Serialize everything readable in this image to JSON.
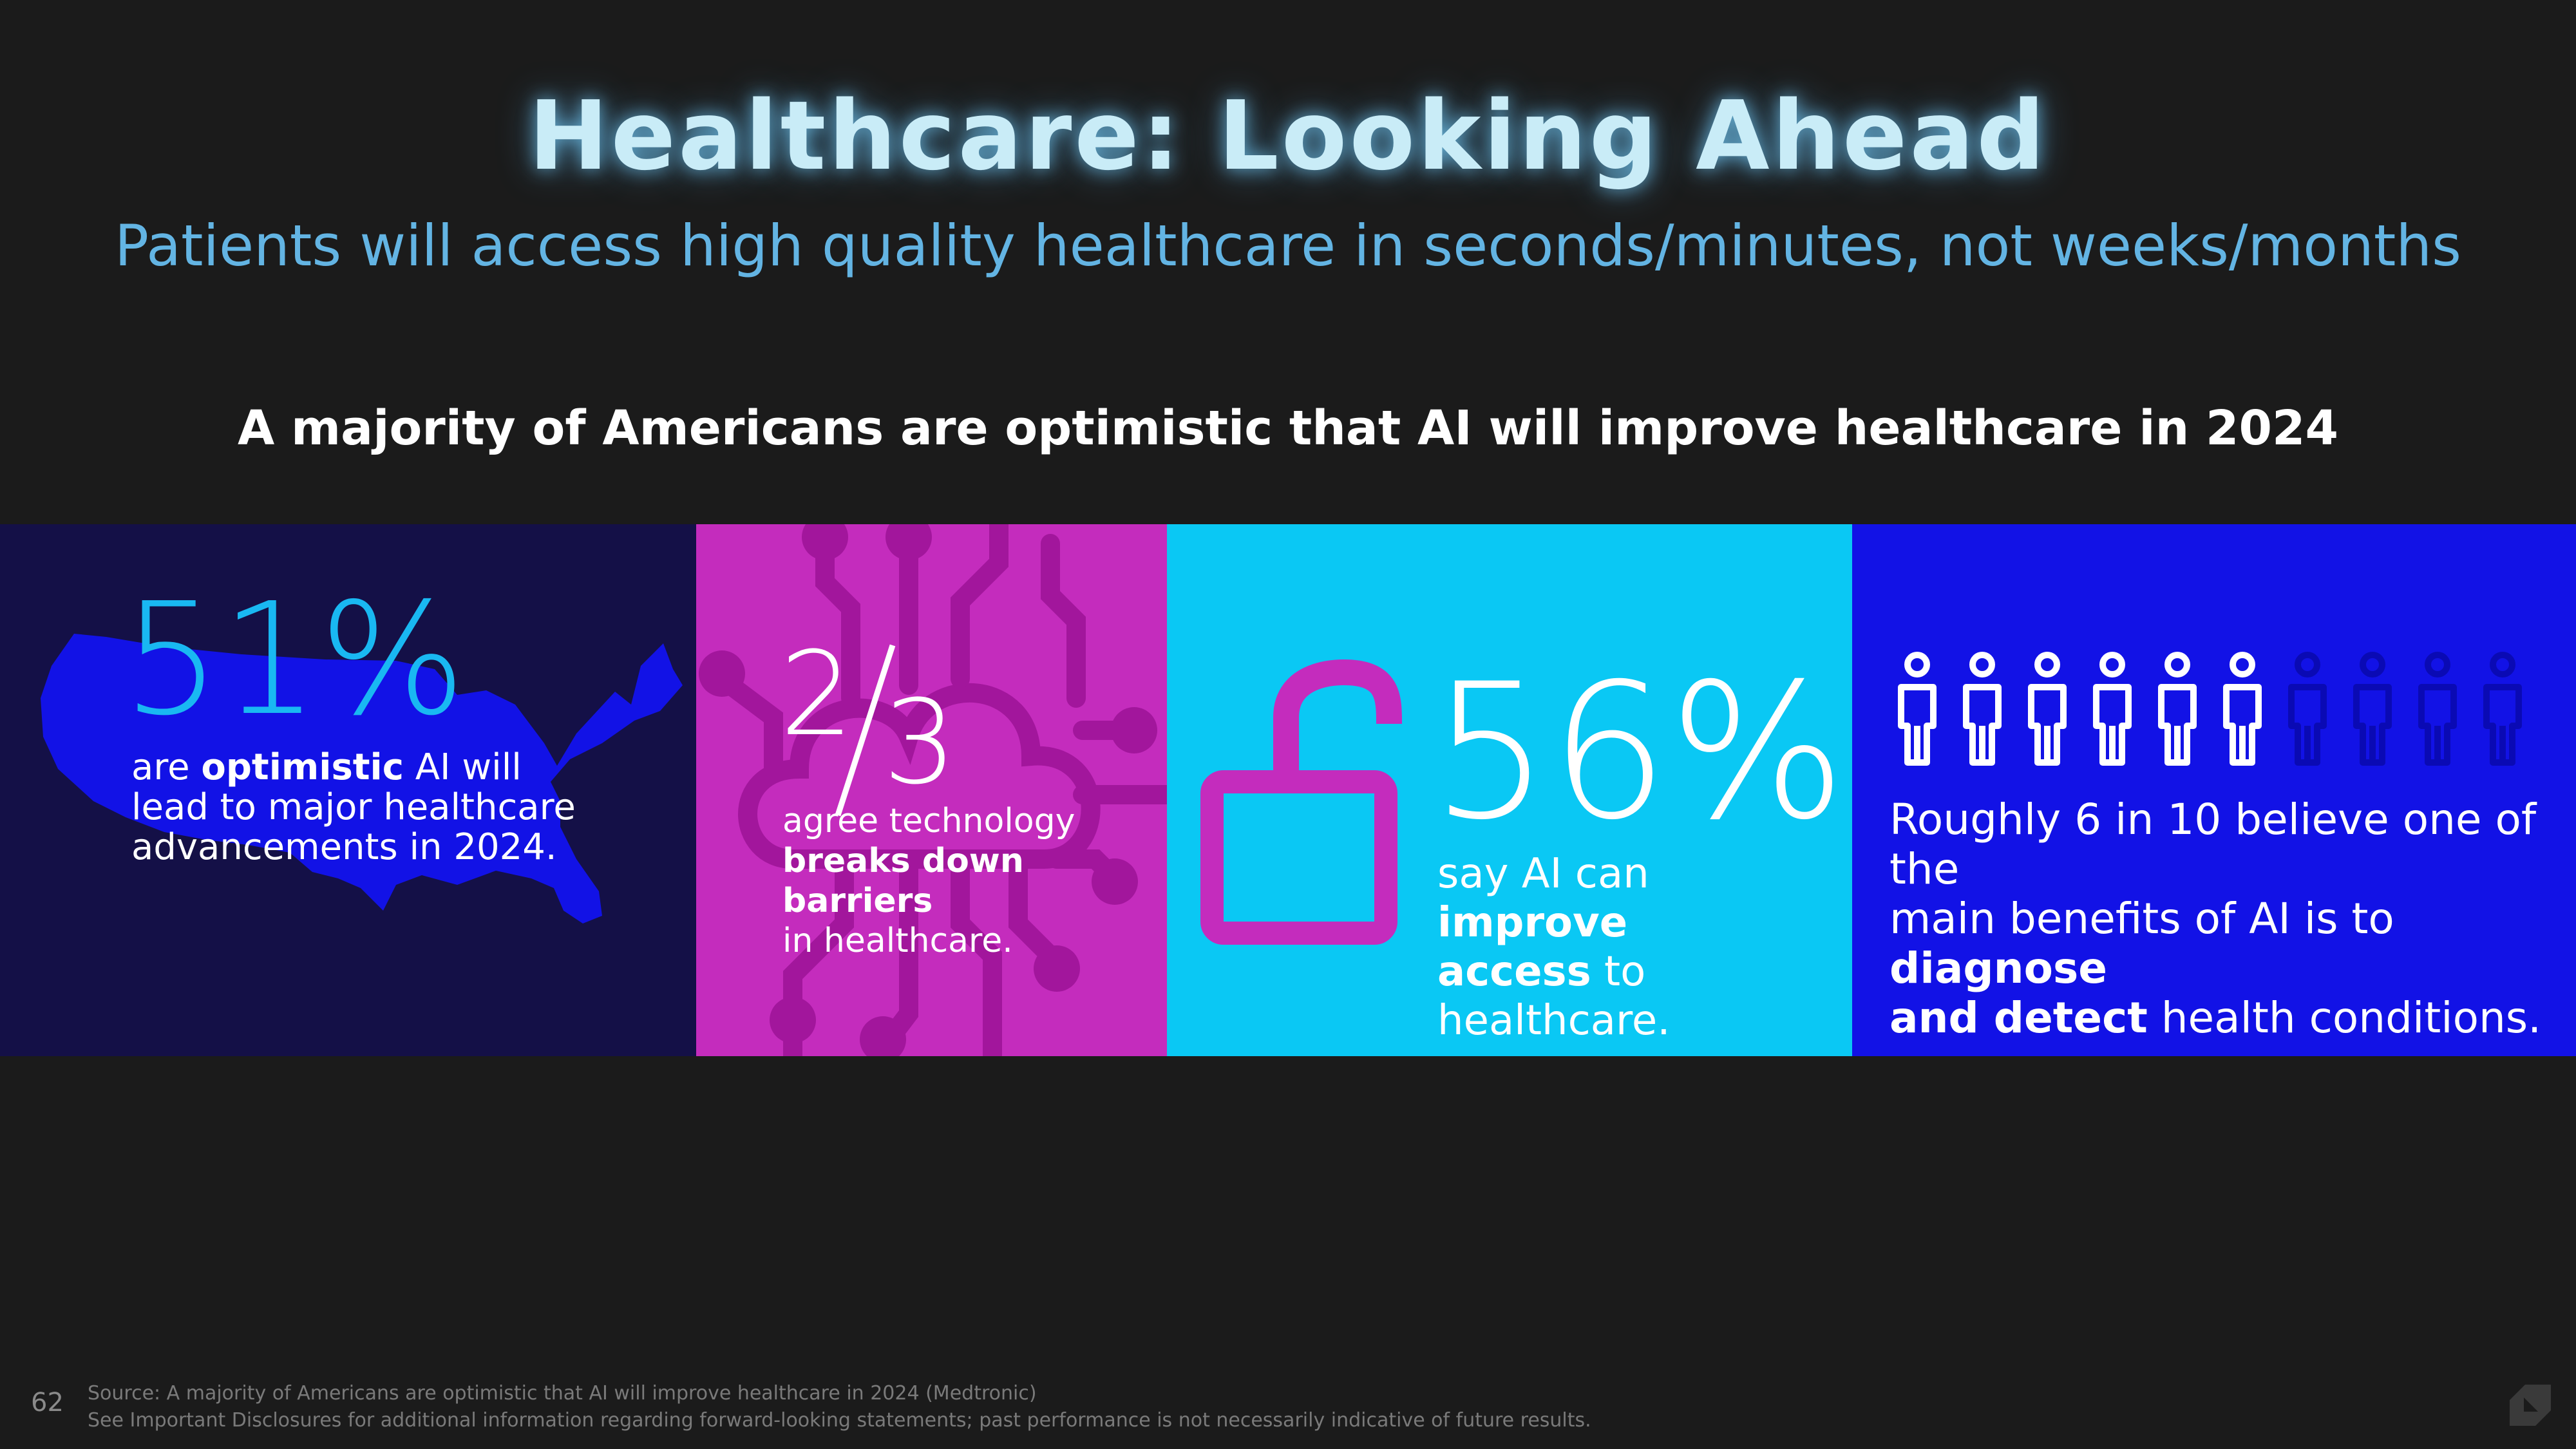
{
  "header": {
    "title": "Healthcare: Looking Ahead",
    "subtitle": "Patients will access high quality healthcare in seconds/minutes, not weeks/months"
  },
  "headline": "A majority of Americans are optimistic that AI will improve healthcare in 2024",
  "panels": {
    "optimistic": {
      "stat": "51%",
      "line1_pre": "are ",
      "line1_bold": "optimistic",
      "line1_post": " AI will",
      "line2": "lead to major healthcare",
      "line3": "advancements in 2024."
    },
    "barriers": {
      "numerator": "2",
      "denominator": "3",
      "line1": "agree technology",
      "line2_bold": "breaks down barriers",
      "line3": "in healthcare."
    },
    "access": {
      "stat": "56%",
      "line1_pre": "say AI can ",
      "line1_bold": "improve",
      "line2_bold": "access",
      "line2_post": " to healthcare."
    },
    "diagnose": {
      "people_total": 10,
      "people_highlighted": 6,
      "line1": "Roughly 6 in 10 believe one of the",
      "line2_pre": "main benefits of AI is to ",
      "line2_bold": "diagnose",
      "line3_bold": "and detect",
      "line3_post": " health conditions."
    }
  },
  "footer": {
    "page_number": "62",
    "source": "Source: A majority of Americans are optimistic that AI will improve healthcare in 2024 (Medtronic)",
    "disclosure": "See Important Disclosures for additional information regarding forward-looking statements; past performance is not necessarily indicative of future results."
  },
  "colors": {
    "background": "#1b1b1b",
    "title": "#c9ecf7",
    "subtitle": "#63b4e3",
    "panel1": "#141047",
    "panel2": "#c42cbd",
    "panel3": "#0ac8f4",
    "panel4": "#1212e6",
    "usa_map": "#1212e6",
    "stat_51": "#19b8f2",
    "lock": "#c42cbd",
    "person_inactive": "#0a0ab4"
  },
  "icons": [
    "usa-map-icon",
    "circuit-cloud-icon",
    "open-padlock-icon",
    "person-icon"
  ]
}
